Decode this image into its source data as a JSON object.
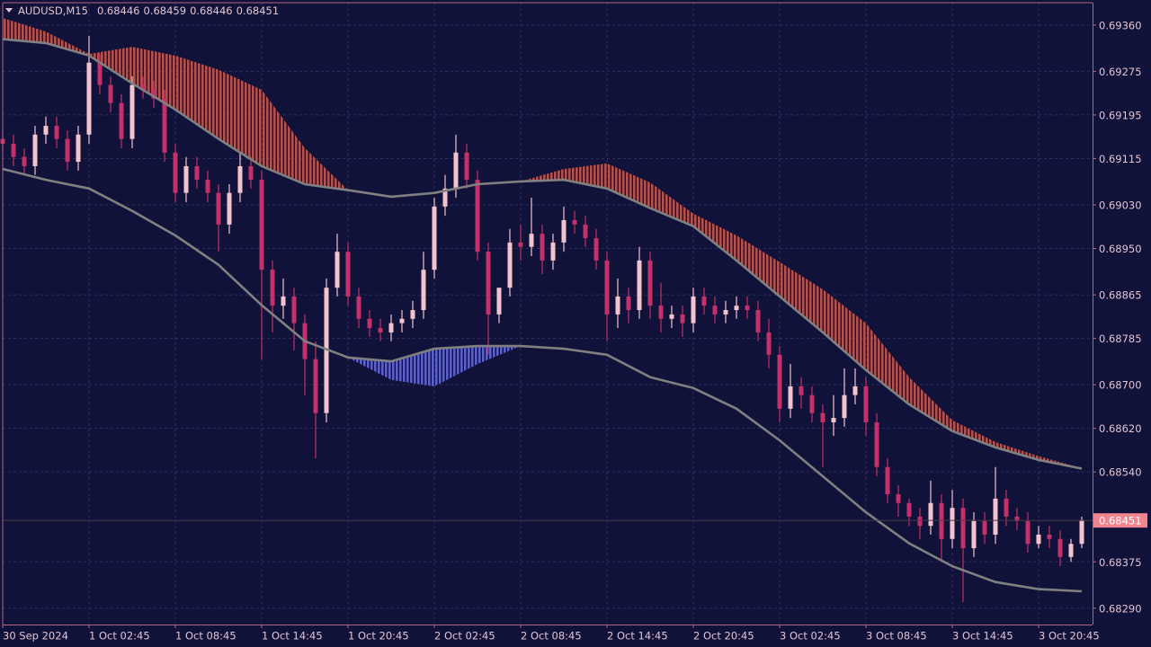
{
  "chart_data": {
    "type": "candlestick",
    "title": "AUDUSD,M15",
    "quote": [
      0.68446,
      0.68459,
      0.68446,
      0.68451
    ],
    "current_price": 0.68451,
    "up_color": "#f3c4cf",
    "down_color": "#c3306a",
    "band_colors": {
      "above": "#b5514c",
      "below": "#5b60c9"
    },
    "x": [
      0,
      3,
      6,
      9,
      12,
      15,
      18,
      21,
      24,
      27,
      30,
      33,
      36,
      39,
      42,
      45,
      48,
      51,
      54,
      57,
      60,
      63,
      66,
      69,
      72,
      75,
      78,
      81,
      84,
      87,
      90,
      93,
      96,
      99,
      102,
      105,
      108,
      111,
      114,
      117,
      120,
      123,
      126,
      129,
      132,
      135,
      138,
      141,
      144,
      147,
      150,
      153,
      156,
      159,
      162,
      165,
      168,
      171,
      174,
      177,
      180,
      183,
      186,
      189,
      192,
      195,
      198,
      201,
      204,
      207,
      210,
      213,
      216,
      219,
      222,
      225,
      228,
      231,
      234,
      237,
      240,
      243,
      246,
      249,
      252,
      255,
      258,
      261,
      264,
      267,
      270,
      273,
      276,
      279,
      282,
      285,
      288,
      291,
      294,
      297,
      300
    ],
    "open": [
      0.69151,
      0.69142,
      0.69118,
      0.69101,
      0.69159,
      0.69175,
      0.69151,
      0.69109,
      0.69159,
      0.69291,
      0.6925,
      0.69217,
      0.69151,
      0.6925,
      0.69241,
      0.69225,
      0.69126,
      0.69052,
      0.69101,
      0.69076,
      0.69052,
      0.68994,
      0.69052,
      0.69101,
      0.69076,
      0.68911,
      0.68845,
      0.68862,
      0.68813,
      0.68747,
      0.68648,
      0.68878,
      0.68944,
      0.68862,
      0.68821,
      0.68804,
      0.68796,
      0.68813,
      0.68821,
      0.68837,
      0.68911,
      0.69027,
      0.6906,
      0.69126,
      0.69076,
      0.68944,
      0.68829,
      0.68878,
      0.68961,
      0.68953,
      0.68977,
      0.68928,
      0.68961,
      0.69002,
      0.68994,
      0.68969,
      0.68928,
      0.68829,
      0.68862,
      0.68837,
      0.68928,
      0.68845,
      0.68821,
      0.68829,
      0.68813,
      0.68862,
      0.68845,
      0.68829,
      0.68837,
      0.68845,
      0.68837,
      0.68796,
      0.68755,
      0.68656,
      0.68697,
      0.68681,
      0.68648,
      0.68631,
      0.68639,
      0.68681,
      0.68697,
      0.68631,
      0.68549,
      0.68499,
      0.68483,
      0.68458,
      0.68441,
      0.68483,
      0.68417,
      0.68474,
      0.684,
      0.6845,
      0.68425,
      0.68491,
      0.68458,
      0.6845,
      0.68408,
      0.68425,
      0.68417,
      0.68384,
      0.68408
    ],
    "high": [
      0.69167,
      0.69159,
      0.69134,
      0.69175,
      0.69192,
      0.69192,
      0.69167,
      0.69175,
      0.6934,
      0.69307,
      0.69266,
      0.69233,
      0.69266,
      0.69266,
      0.69258,
      0.69241,
      0.69142,
      0.69118,
      0.69118,
      0.69093,
      0.69068,
      0.69068,
      0.69126,
      0.69118,
      0.69093,
      0.68928,
      0.68895,
      0.68878,
      0.68829,
      0.6878,
      0.68895,
      0.68977,
      0.68961,
      0.68878,
      0.68837,
      0.68821,
      0.68829,
      0.68837,
      0.68854,
      0.68944,
      0.69043,
      0.69085,
      0.69159,
      0.69142,
      0.69093,
      0.68961,
      0.68878,
      0.68986,
      0.68994,
      0.69043,
      0.68994,
      0.68977,
      0.69027,
      0.69019,
      0.6901,
      0.68986,
      0.68944,
      0.68895,
      0.68878,
      0.68953,
      0.68944,
      0.68887,
      0.68845,
      0.68845,
      0.68878,
      0.68878,
      0.68862,
      0.68854,
      0.68862,
      0.68862,
      0.68854,
      0.68821,
      0.68771,
      0.68738,
      0.68714,
      0.68697,
      0.68664,
      0.68681,
      0.6873,
      0.6873,
      0.68714,
      0.68648,
      0.68565,
      0.68516,
      0.68491,
      0.68474,
      0.68524,
      0.68499,
      0.68507,
      0.68491,
      0.68466,
      0.68466,
      0.68549,
      0.68507,
      0.68474,
      0.68466,
      0.68441,
      0.68441,
      0.68433,
      0.68417,
      0.68458
    ],
    "low": [
      0.69126,
      0.69101,
      0.69085,
      0.69085,
      0.69142,
      0.69134,
      0.69093,
      0.69093,
      0.69142,
      0.69233,
      0.692,
      0.69134,
      0.69134,
      0.69225,
      0.69208,
      0.69109,
      0.69035,
      0.69035,
      0.6906,
      0.69035,
      0.68944,
      0.68977,
      0.69035,
      0.6906,
      0.68747,
      0.68796,
      0.68821,
      0.68763,
      0.68681,
      0.68565,
      0.68631,
      0.68862,
      0.68845,
      0.68804,
      0.68788,
      0.6878,
      0.6878,
      0.68796,
      0.68804,
      0.68821,
      0.68895,
      0.6901,
      0.69043,
      0.6906,
      0.68928,
      0.68755,
      0.68813,
      0.68862,
      0.68928,
      0.68936,
      0.68903,
      0.68911,
      0.68944,
      0.68977,
      0.68953,
      0.68911,
      0.6878,
      0.68804,
      0.68813,
      0.68821,
      0.68821,
      0.68796,
      0.68804,
      0.68788,
      0.68796,
      0.68829,
      0.68813,
      0.68813,
      0.68821,
      0.68821,
      0.6878,
      0.6873,
      0.68631,
      0.68639,
      0.68656,
      0.68631,
      0.68549,
      0.68606,
      0.68623,
      0.68664,
      0.68606,
      0.68532,
      0.68483,
      0.68458,
      0.68441,
      0.68417,
      0.68425,
      0.68375,
      0.684,
      0.68301,
      0.68384,
      0.68408,
      0.68408,
      0.68441,
      0.68433,
      0.68392,
      0.684,
      0.684,
      0.68367,
      0.68375,
      0.684
    ],
    "close": [
      0.69142,
      0.69118,
      0.69101,
      0.69159,
      0.69175,
      0.69151,
      0.69109,
      0.69159,
      0.69291,
      0.6925,
      0.69217,
      0.69151,
      0.6925,
      0.69241,
      0.69225,
      0.69126,
      0.69052,
      0.69101,
      0.69076,
      0.69052,
      0.68994,
      0.69052,
      0.69101,
      0.69076,
      0.68911,
      0.68845,
      0.68862,
      0.68813,
      0.68747,
      0.68648,
      0.68878,
      0.68944,
      0.68862,
      0.68821,
      0.68804,
      0.68796,
      0.68813,
      0.68821,
      0.68837,
      0.68911,
      0.69027,
      0.6906,
      0.69126,
      0.69076,
      0.68944,
      0.68829,
      0.68878,
      0.68961,
      0.68953,
      0.68977,
      0.68928,
      0.68961,
      0.69002,
      0.68994,
      0.68969,
      0.68928,
      0.68829,
      0.68862,
      0.68837,
      0.68928,
      0.68845,
      0.68821,
      0.68829,
      0.68813,
      0.68862,
      0.68845,
      0.68829,
      0.68837,
      0.68845,
      0.68837,
      0.68796,
      0.68755,
      0.68656,
      0.68697,
      0.68681,
      0.68648,
      0.68631,
      0.68639,
      0.68681,
      0.68697,
      0.68631,
      0.68549,
      0.68499,
      0.68483,
      0.68458,
      0.68441,
      0.68483,
      0.68417,
      0.68474,
      0.684,
      0.6845,
      0.68425,
      0.68491,
      0.68458,
      0.6845,
      0.68408,
      0.68425,
      0.68417,
      0.68384,
      0.68408,
      0.68451
    ],
    "lines": [
      {
        "color": "#808080",
        "x": [
          0,
          12,
          24,
          36,
          48,
          60,
          72,
          84,
          96,
          108,
          120,
          132,
          144,
          156,
          168,
          180,
          192,
          204,
          216,
          228,
          240,
          252,
          264,
          276,
          288,
          300
        ],
        "values": [
          0.69334,
          0.69327,
          0.69304,
          0.69253,
          0.69205,
          0.69151,
          0.69101,
          0.69068,
          0.69057,
          0.69045,
          0.69052,
          0.69068,
          0.69073,
          0.69076,
          0.6906,
          0.69024,
          0.68991,
          0.68928,
          0.68862,
          0.68796,
          0.68727,
          0.68664,
          0.68615,
          0.68585,
          0.68562,
          0.68546
        ],
        "band": [
          0.69373,
          0.69348,
          0.69307,
          0.6932,
          0.69304,
          0.69278,
          0.69241,
          0.69134,
          0.69057,
          0.69045,
          0.69052,
          0.69068,
          0.69073,
          0.69096,
          0.69106,
          0.69071,
          0.69014,
          0.68974,
          0.68925,
          0.68875,
          0.68813,
          0.68714,
          0.68635,
          0.68595,
          0.68569,
          0.68547
        ]
      },
      {
        "color": "#808080",
        "x": [
          0,
          12,
          24,
          36,
          48,
          60,
          72,
          84,
          96,
          108,
          120,
          132,
          144,
          156,
          168,
          180,
          192,
          204,
          216,
          228,
          240,
          252,
          264,
          276,
          288,
          300
        ],
        "values": [
          0.69096,
          0.69076,
          0.6906,
          0.69019,
          0.68974,
          0.6892,
          0.68846,
          0.6878,
          0.6875,
          0.68743,
          0.68766,
          0.68771,
          0.68771,
          0.68766,
          0.68755,
          0.68714,
          0.68694,
          0.68656,
          0.68598,
          0.68532,
          0.68466,
          0.68409,
          0.68367,
          0.68338,
          0.68325,
          0.68321
        ],
        "band": [
          0.69096,
          0.69076,
          0.6906,
          0.69019,
          0.68974,
          0.6892,
          0.68846,
          0.6878,
          0.6875,
          0.68709,
          0.68697,
          0.68738,
          0.68771,
          0.68766,
          0.68755,
          0.68714,
          0.68694,
          0.68656,
          0.68598,
          0.68532,
          0.68466,
          0.68409,
          0.68367,
          0.68338,
          0.68325,
          0.68321
        ]
      }
    ],
    "xlim": [
      0,
      303
    ],
    "ylim": [
      0.6826,
      0.69401
    ],
    "xticks": [
      {
        "value": 0,
        "label": "30 Sep 2024"
      },
      {
        "value": 24,
        "label": "1 Oct 02:45"
      },
      {
        "value": 48,
        "label": "1 Oct 08:45"
      },
      {
        "value": 72,
        "label": "1 Oct 14:45"
      },
      {
        "value": 96,
        "label": "1 Oct 20:45"
      },
      {
        "value": 120,
        "label": "2 Oct 02:45"
      },
      {
        "value": 144,
        "label": "2 Oct 08:45"
      },
      {
        "value": 168,
        "label": "2 Oct 14:45"
      },
      {
        "value": 192,
        "label": "2 Oct 20:45"
      },
      {
        "value": 216,
        "label": "3 Oct 02:45"
      },
      {
        "value": 240,
        "label": "3 Oct 08:45"
      },
      {
        "value": 264,
        "label": "3 Oct 14:45"
      },
      {
        "value": 288,
        "label": "3 Oct 20:45"
      }
    ],
    "yticks": [
      {
        "value": 0.6936,
        "label": "0.69360"
      },
      0.69275,
      0.69195,
      0.69115,
      {
        "value": 0.6903,
        "label": "0.69030"
      },
      {
        "value": 0.6895,
        "label": "0.68950"
      },
      0.68865,
      0.68785,
      {
        "value": 0.687,
        "label": "0.68700"
      },
      {
        "value": 0.6862,
        "label": "0.68620"
      },
      {
        "value": 0.6854,
        "label": "0.68540"
      },
      0.68375,
      {
        "value": 0.6829,
        "label": "0.68290"
      }
    ],
    "grid": true
  }
}
